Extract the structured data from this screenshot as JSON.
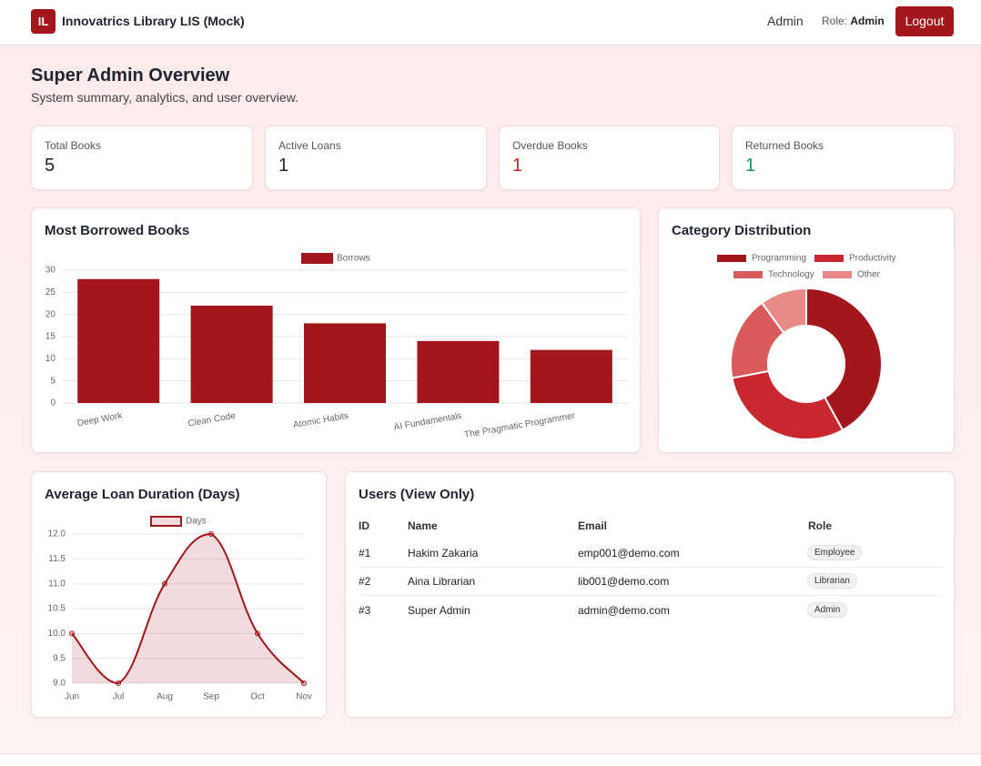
{
  "navbar": {
    "logo": "IL",
    "brand": "Innovatrics Library LIS (Mock)",
    "user": "Admin",
    "role_label": "Role:",
    "role": "Admin",
    "logout": "Logout"
  },
  "header": {
    "title": "Super Admin Overview",
    "subtitle": "System summary, analytics, and user overview."
  },
  "stats": [
    {
      "label": "Total Books",
      "value": 5
    },
    {
      "label": "Active Loans",
      "value": 1
    },
    {
      "label": "Overdue Books",
      "value": 1
    },
    {
      "label": "Returned Books",
      "value": 1
    }
  ],
  "chart_data": [
    {
      "type": "bar",
      "title": "Most Borrowed Books",
      "categories": [
        "Deep Work",
        "Clean Code",
        "Atomic Habits",
        "AI Fundamentals",
        "The Pragmatic Programmer"
      ],
      "series": [
        {
          "name": "Borrows",
          "color": "#a3161c",
          "values": [
            28,
            22,
            18,
            14,
            12
          ]
        }
      ],
      "ylim": [
        0,
        30
      ],
      "yticks": [
        0,
        5,
        10,
        15,
        20,
        25,
        30
      ],
      "grid": true,
      "legend": "top"
    },
    {
      "type": "doughnut",
      "title": "Category Distribution",
      "categories": [
        "Programming",
        "Productivity",
        "Technology",
        "Other"
      ],
      "values": [
        42,
        30,
        18,
        10
      ],
      "colors": [
        "#a3161c",
        "#c8282e",
        "#d85a5a",
        "#e88a88"
      ],
      "legend": "top"
    },
    {
      "type": "line",
      "title": "Average Loan Duration (Days)",
      "categories": [
        "Jun",
        "Jul",
        "Aug",
        "Sep",
        "Oct",
        "Nov"
      ],
      "series": [
        {
          "name": "Days",
          "color": "#a3161c",
          "values": [
            10,
            9,
            11,
            12,
            10,
            9
          ]
        }
      ],
      "ylim": [
        9,
        12
      ],
      "yticks": [
        {
          "value": 9,
          "label": "9.0"
        },
        9.5,
        {
          "value": 10,
          "label": "10.0"
        },
        10.5,
        {
          "value": 11,
          "label": "11.0"
        },
        11.5,
        {
          "value": 12,
          "label": "12.0"
        }
      ],
      "grid": true,
      "fill": true,
      "legend": "top"
    }
  ],
  "users": {
    "title": "Users (View Only)",
    "headers": [
      "ID",
      "Name",
      "Email",
      "Role"
    ],
    "rows": [
      [
        "#1",
        "Hakim Zakaria",
        "emp001@demo.com",
        "Employee"
      ],
      [
        "#2",
        "Aina Librarian",
        "lib001@demo.com",
        "Librarian"
      ],
      [
        "#3",
        "Super Admin",
        "admin@demo.com",
        "Admin"
      ]
    ]
  }
}
